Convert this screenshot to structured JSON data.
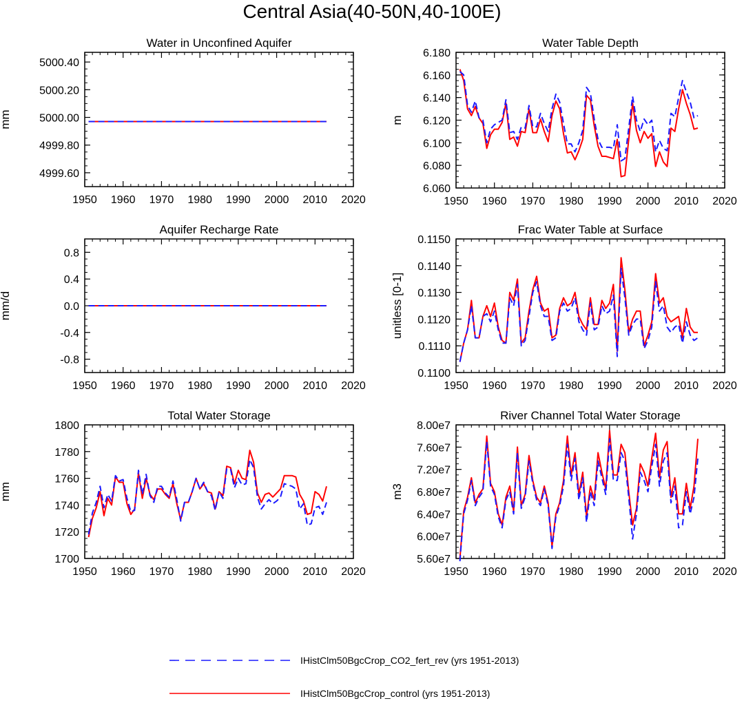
{
  "title": "Central Asia(40-50N,40-100E)",
  "colors": {
    "exp": "#1a1aff",
    "ctl": "#ff0000"
  },
  "legend": {
    "exp_label": "IHistClm50BgcCrop_CO2_fert_rev (yrs 1951-2013)",
    "ctl_label": "IHistClm50BgcCrop_control (yrs 1951-2013)",
    "exp_style": "dashed",
    "ctl_style": "solid"
  },
  "chart_data": [
    {
      "type": "line",
      "title": "Water in Unconfined Aquifer",
      "ylabel": "mm",
      "xlim": [
        1950,
        2020
      ],
      "ylim": [
        4999.5,
        5000.47
      ],
      "x_ticks": [
        1950,
        1960,
        1970,
        1980,
        1990,
        2000,
        2010,
        2020
      ],
      "y_ticks": [
        4999.6,
        4999.8,
        5000.0,
        5000.2,
        5000.4
      ],
      "y_tick_labels": [
        "4999.60",
        "4999.80",
        "5000.00",
        "5000.20",
        "5000.40"
      ],
      "x": [
        1951,
        2013
      ],
      "series": [
        {
          "key": "ctl",
          "values": [
            4999.97,
            4999.97
          ]
        },
        {
          "key": "exp",
          "values": [
            4999.97,
            4999.97
          ]
        }
      ]
    },
    {
      "type": "line",
      "title": "Water Table Depth",
      "ylabel": "m",
      "xlim": [
        1950,
        2020
      ],
      "ylim": [
        6.06,
        6.18
      ],
      "x_ticks": [
        1950,
        1960,
        1970,
        1980,
        1990,
        2000,
        2010,
        2020
      ],
      "y_ticks": [
        6.06,
        6.08,
        6.1,
        6.12,
        6.14,
        6.16,
        6.18
      ],
      "y_tick_labels": [
        "6.060",
        "6.080",
        "6.100",
        "6.120",
        "6.140",
        "6.160",
        "6.180"
      ],
      "x_start": 1951,
      "series": [
        {
          "key": "ctl",
          "values": [
            6.165,
            6.155,
            6.13,
            6.124,
            6.132,
            6.122,
            6.117,
            6.095,
            6.107,
            6.112,
            6.112,
            6.118,
            6.135,
            6.103,
            6.105,
            6.097,
            6.11,
            6.109,
            6.13,
            6.109,
            6.109,
            6.121,
            6.11,
            6.101,
            6.124,
            6.137,
            6.13,
            6.108,
            6.091,
            6.092,
            6.085,
            6.093,
            6.103,
            6.142,
            6.138,
            6.115,
            6.097,
            6.088,
            6.088,
            6.087,
            6.086,
            6.103,
            6.07,
            6.071,
            6.103,
            6.135,
            6.111,
            6.1,
            6.11,
            6.104,
            6.108,
            6.079,
            6.092,
            6.083,
            6.079,
            6.113,
            6.11,
            6.13,
            6.147,
            6.135,
            6.125,
            6.112,
            6.113
          ]
        },
        {
          "key": "exp",
          "values": [
            6.163,
            6.16,
            6.133,
            6.127,
            6.137,
            6.122,
            6.12,
            6.1,
            6.112,
            6.116,
            6.118,
            6.12,
            6.138,
            6.109,
            6.11,
            6.103,
            6.114,
            6.113,
            6.133,
            6.114,
            6.114,
            6.126,
            6.117,
            6.11,
            6.13,
            6.143,
            6.136,
            6.117,
            6.099,
            6.099,
            6.092,
            6.1,
            6.111,
            6.149,
            6.144,
            6.121,
            6.103,
            6.096,
            6.096,
            6.096,
            6.095,
            6.116,
            6.084,
            6.086,
            6.113,
            6.141,
            6.12,
            6.11,
            6.121,
            6.116,
            6.12,
            6.092,
            6.102,
            6.095,
            6.093,
            6.126,
            6.123,
            6.14,
            6.155,
            6.145,
            6.136,
            6.122,
            6.124
          ]
        }
      ]
    },
    {
      "type": "line",
      "title": "Aquifer Recharge Rate",
      "ylabel": "mm/d",
      "xlim": [
        1950,
        2020
      ],
      "ylim": [
        -1.0,
        1.0
      ],
      "x_ticks": [
        1950,
        1960,
        1970,
        1980,
        1990,
        2000,
        2010,
        2020
      ],
      "y_ticks": [
        -0.8,
        -0.4,
        0.0,
        0.4,
        0.8
      ],
      "y_tick_labels": [
        "-0.8",
        "-0.4",
        "0.0",
        "0.4",
        "0.8"
      ],
      "x": [
        1951,
        2013
      ],
      "series": [
        {
          "key": "ctl",
          "values": [
            0.0,
            0.0
          ]
        },
        {
          "key": "exp",
          "values": [
            0.0,
            0.0
          ]
        }
      ]
    },
    {
      "type": "line",
      "title": "Frac Water Table at Surface",
      "ylabel": "unitless [0-1]",
      "xlim": [
        1950,
        2020
      ],
      "ylim": [
        0.11,
        0.115
      ],
      "x_ticks": [
        1950,
        1960,
        1970,
        1980,
        1990,
        2000,
        2010,
        2020
      ],
      "y_ticks": [
        0.11,
        0.111,
        0.112,
        0.113,
        0.114,
        0.115
      ],
      "y_tick_labels": [
        "0.1100",
        "0.1110",
        "0.1120",
        "0.1130",
        "0.1140",
        "0.1150"
      ],
      "x_start": 1951,
      "series": [
        {
          "key": "ctl",
          "values": [
            0.1104,
            0.1111,
            0.1116,
            0.1127,
            0.1113,
            0.1113,
            0.1121,
            0.1125,
            0.1121,
            0.1126,
            0.1117,
            0.1112,
            0.1111,
            0.113,
            0.1127,
            0.1135,
            0.1111,
            0.1113,
            0.1123,
            0.1131,
            0.1136,
            0.1126,
            0.1123,
            0.1124,
            0.1113,
            0.1114,
            0.1124,
            0.1128,
            0.1125,
            0.1126,
            0.113,
            0.1121,
            0.1118,
            0.1116,
            0.1128,
            0.1118,
            0.1118,
            0.1127,
            0.1124,
            0.1126,
            0.1133,
            0.1108,
            0.1143,
            0.1131,
            0.1115,
            0.112,
            0.1123,
            0.1123,
            0.111,
            0.1114,
            0.1119,
            0.1137,
            0.1126,
            0.1128,
            0.1121,
            0.1119,
            0.112,
            0.1121,
            0.1113,
            0.1124,
            0.1117,
            0.1115,
            0.1115
          ]
        },
        {
          "key": "exp",
          "values": [
            0.1104,
            0.1111,
            0.1116,
            0.1125,
            0.1113,
            0.1113,
            0.1121,
            0.1122,
            0.1119,
            0.1123,
            0.1116,
            0.1111,
            0.1111,
            0.1128,
            0.1125,
            0.1133,
            0.111,
            0.1112,
            0.1121,
            0.113,
            0.1134,
            0.1125,
            0.1121,
            0.1121,
            0.1112,
            0.1113,
            0.1123,
            0.1126,
            0.1123,
            0.1124,
            0.1128,
            0.1119,
            0.1116,
            0.1114,
            0.1126,
            0.1116,
            0.1117,
            0.1125,
            0.1122,
            0.1123,
            0.1129,
            0.1106,
            0.1139,
            0.1128,
            0.1114,
            0.1118,
            0.112,
            0.112,
            0.1109,
            0.1112,
            0.1117,
            0.1134,
            0.1123,
            0.1125,
            0.1117,
            0.1115,
            0.1117,
            0.1118,
            0.1111,
            0.1119,
            0.1114,
            0.1112,
            0.1113
          ]
        }
      ]
    },
    {
      "type": "line",
      "title": "Total Water Storage",
      "ylabel": "mm",
      "xlim": [
        1950,
        2020
      ],
      "ylim": [
        1700,
        1800
      ],
      "x_ticks": [
        1950,
        1960,
        1970,
        1980,
        1990,
        2000,
        2010,
        2020
      ],
      "y_ticks": [
        1700,
        1720,
        1740,
        1760,
        1780,
        1800
      ],
      "y_tick_labels": [
        "1700",
        "1720",
        "1740",
        "1760",
        "1780",
        "1800"
      ],
      "x_start": 1951,
      "series": [
        {
          "key": "ctl",
          "values": [
            1716,
            1730,
            1738,
            1750,
            1732,
            1745,
            1740,
            1761,
            1757,
            1757,
            1741,
            1733,
            1737,
            1764,
            1745,
            1760,
            1748,
            1744,
            1752,
            1752,
            1748,
            1745,
            1756,
            1741,
            1729,
            1742,
            1742,
            1750,
            1760,
            1752,
            1756,
            1750,
            1749,
            1737,
            1750,
            1747,
            1769,
            1768,
            1756,
            1766,
            1760,
            1759,
            1781,
            1772,
            1749,
            1742,
            1748,
            1749,
            1746,
            1749,
            1752,
            1762,
            1762,
            1762,
            1761,
            1748,
            1743,
            1733,
            1734,
            1750,
            1748,
            1743,
            1754
          ]
        },
        {
          "key": "exp",
          "values": [
            1718,
            1734,
            1742,
            1754,
            1738,
            1748,
            1743,
            1762,
            1758,
            1759,
            1745,
            1735,
            1736,
            1766,
            1748,
            1763,
            1747,
            1742,
            1754,
            1754,
            1749,
            1746,
            1758,
            1744,
            1728,
            1742,
            1742,
            1750,
            1760,
            1752,
            1757,
            1750,
            1747,
            1736,
            1750,
            1745,
            1767,
            1767,
            1753,
            1760,
            1755,
            1756,
            1774,
            1768,
            1746,
            1737,
            1741,
            1744,
            1741,
            1743,
            1746,
            1756,
            1755,
            1754,
            1752,
            1737,
            1741,
            1725,
            1726,
            1738,
            1739,
            1733,
            1742
          ]
        }
      ]
    },
    {
      "type": "line",
      "title": "River Channel Total Water Storage",
      "ylabel": "m3",
      "xlim": [
        1950,
        2020
      ],
      "ylim": [
        56000000.0,
        80000000.0
      ],
      "x_ticks": [
        1950,
        1960,
        1970,
        1980,
        1990,
        2000,
        2010,
        2020
      ],
      "y_ticks": [
        56000000.0,
        60000000.0,
        64000000.0,
        68000000.0,
        72000000.0,
        76000000.0,
        80000000.0
      ],
      "y_tick_labels": [
        "5.60e7",
        "6.00e7",
        "6.40e7",
        "6.80e7",
        "7.20e7",
        "7.60e7",
        "8.00e7"
      ],
      "x_start": 1951,
      "series": [
        {
          "key": "ctl",
          "values": [
            56000000,
            64500000,
            67000000,
            70500000,
            66000000,
            67500000,
            68500000,
            78000000,
            69500000,
            68000000,
            64000000,
            62000000,
            67000000,
            69000000,
            64500000,
            76000000,
            65500000,
            67500000,
            74500000,
            70000000,
            67000000,
            66000000,
            69000000,
            66000000,
            58200000,
            64000000,
            66000000,
            70000000,
            78000000,
            71000000,
            75000000,
            67500000,
            71500000,
            63500000,
            69000000,
            66500000,
            75000000,
            71500000,
            68500000,
            79000000,
            71000000,
            71000000,
            76500000,
            75000000,
            68000000,
            62000000,
            65000000,
            73000000,
            71500000,
            69000000,
            74000000,
            78500000,
            70500000,
            75500000,
            77000000,
            67000000,
            70500000,
            64000000,
            64000000,
            69500000,
            65000000,
            69000000,
            77500000
          ]
        },
        {
          "key": "exp",
          "values": [
            55500000,
            64000000,
            66500000,
            70000000,
            65500000,
            67000000,
            68000000,
            77000000,
            69000000,
            67500000,
            63500000,
            61500000,
            66500000,
            68000000,
            64000000,
            75000000,
            65000000,
            67000000,
            73500000,
            69500000,
            66500000,
            65500000,
            68500000,
            65500000,
            57800000,
            63500000,
            65500000,
            69000000,
            76500000,
            70000000,
            74000000,
            66500000,
            70500000,
            62500000,
            68000000,
            65500000,
            73500000,
            70500000,
            67500000,
            77500000,
            70000000,
            70000000,
            75000000,
            73500000,
            67000000,
            59500000,
            64000000,
            71500000,
            70000000,
            68000000,
            72500000,
            76500000,
            69000000,
            73500000,
            75000000,
            66000000,
            69000000,
            61500000,
            62000000,
            68000000,
            64000000,
            67000000,
            74000000
          ]
        }
      ]
    }
  ]
}
